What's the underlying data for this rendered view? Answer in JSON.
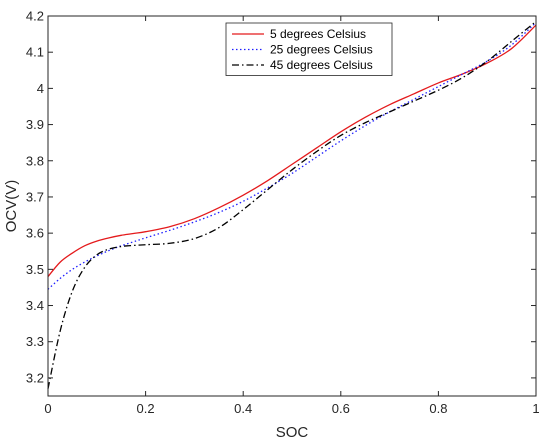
{
  "chart_data": {
    "type": "line",
    "title": "",
    "xlabel": "SOC",
    "ylabel": "OCV(V)",
    "xlim": [
      0,
      1
    ],
    "ylim": [
      3.15,
      4.2
    ],
    "x_ticks": [
      0,
      0.2,
      0.4,
      0.6,
      0.8,
      1
    ],
    "x_tick_labels": [
      "0",
      "0.2",
      "0.4",
      "0.6",
      "0.8",
      "1"
    ],
    "y_ticks": [
      3.2,
      3.3,
      3.4,
      3.5,
      3.6,
      3.7,
      3.8,
      3.9,
      4.0,
      4.1,
      4.2
    ],
    "y_tick_labels": [
      "3.2",
      "3.3",
      "3.4",
      "3.5",
      "3.6",
      "3.7",
      "3.8",
      "3.9",
      "4",
      "4.1",
      "4.2"
    ],
    "grid": false,
    "box": true,
    "legend_position": "top-center",
    "x": [
      0,
      0.025,
      0.05,
      0.075,
      0.1,
      0.125,
      0.15,
      0.175,
      0.2,
      0.25,
      0.3,
      0.35,
      0.4,
      0.45,
      0.5,
      0.55,
      0.6,
      0.65,
      0.7,
      0.75,
      0.8,
      0.85,
      0.9,
      0.95,
      1.0
    ],
    "series": [
      {
        "name": "5 degrees Celsius",
        "color": "#e41a1c",
        "dash": "solid",
        "values": [
          3.48,
          3.52,
          3.545,
          3.565,
          3.578,
          3.587,
          3.594,
          3.599,
          3.604,
          3.618,
          3.64,
          3.67,
          3.705,
          3.745,
          3.79,
          3.835,
          3.88,
          3.92,
          3.955,
          3.985,
          4.015,
          4.04,
          4.07,
          4.11,
          4.175
        ]
      },
      {
        "name": "25 degrees Celsius",
        "color": "#1f1fff",
        "dash": "dotted",
        "values": [
          3.445,
          3.475,
          3.5,
          3.52,
          3.537,
          3.552,
          3.565,
          3.576,
          3.587,
          3.608,
          3.631,
          3.657,
          3.688,
          3.725,
          3.765,
          3.81,
          3.855,
          3.897,
          3.935,
          3.97,
          4.005,
          4.04,
          4.075,
          4.12,
          4.182
        ]
      },
      {
        "name": "45 degrees Celsius",
        "color": "#000000",
        "dash": "dashdot",
        "values": [
          3.17,
          3.33,
          3.44,
          3.505,
          3.54,
          3.556,
          3.563,
          3.566,
          3.568,
          3.572,
          3.585,
          3.615,
          3.665,
          3.72,
          3.775,
          3.825,
          3.87,
          3.905,
          3.935,
          3.965,
          3.995,
          4.03,
          4.075,
          4.13,
          4.185
        ]
      }
    ]
  }
}
